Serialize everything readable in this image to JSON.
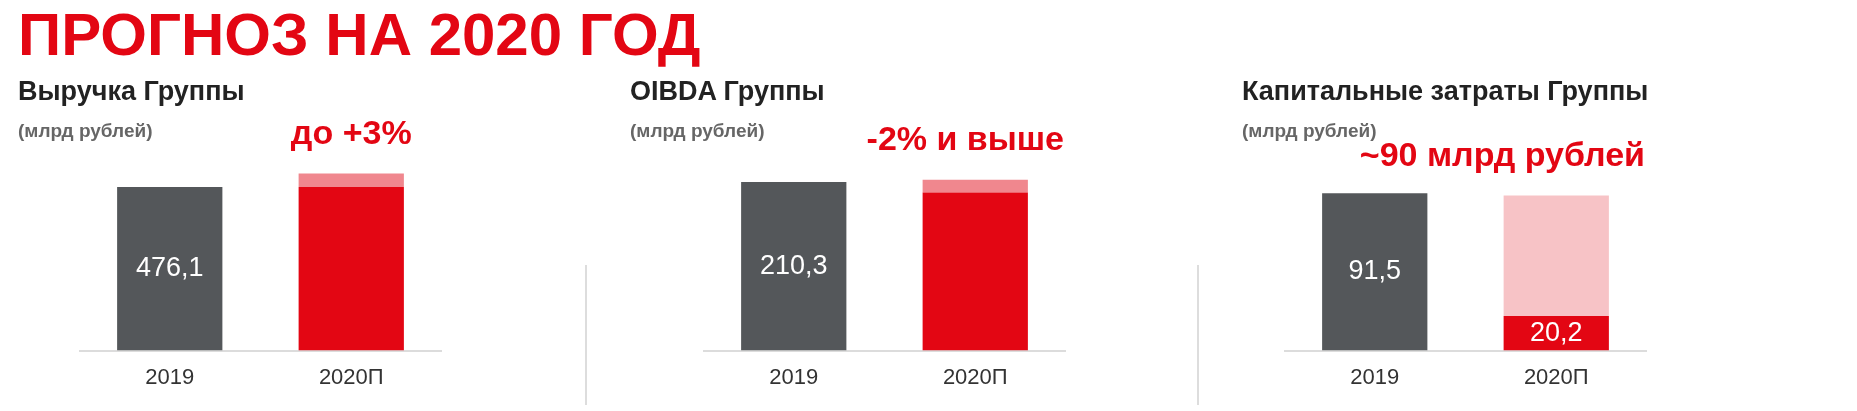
{
  "chart_data": [
    {
      "type": "other",
      "title": "ПРОГНОЗ НА 2020 ГОД"
    },
    {
      "type": "bar",
      "title": "Выручка Группы",
      "ylabel": "(млрд рублей)",
      "stacked": true,
      "tick_labels": "x",
      "categories": [
        "2019",
        "2020П"
      ],
      "series": [
        {
          "colors": [
            "#54575a",
            "#e30613"
          ],
          "values": [
            476.1,
            476
          ],
          "value_labels": [
            "476,1",
            null
          ]
        },
        {
          "color": "#f0878e",
          "values": [
            null,
            39
          ]
        }
      ],
      "annotations": [
        {
          "text": "до +3%",
          "x": "2020П",
          "y": 515
        }
      ]
    },
    {
      "type": "bar",
      "title": "OIBDA Группы",
      "ylabel": "(млрд рублей)",
      "stacked": true,
      "tick_labels": "x",
      "categories": [
        "2019",
        "2020П"
      ],
      "series": [
        {
          "colors": [
            "#54575a",
            "#e30613"
          ],
          "values": [
            210.3,
            197
          ],
          "value_labels": [
            "210,3",
            null
          ]
        },
        {
          "color": "#f0878e",
          "values": [
            null,
            16
          ]
        }
      ],
      "annotations": [
        {
          "text": "-2% и выше",
          "x": "2020П",
          "y": 213
        }
      ]
    },
    {
      "type": "bar",
      "title": "Капитальные затраты Группы",
      "ylabel": "(млрд рублей)",
      "stacked": true,
      "tick_labels": "x",
      "categories": [
        "2019",
        "2020П"
      ],
      "series": [
        {
          "colors": [
            "#54575a",
            "#e30613"
          ],
          "values": [
            91.5,
            20.2
          ],
          "value_labels": [
            "91,5",
            "20,2"
          ]
        },
        {
          "color": "#f7c3c6",
          "values": [
            null,
            70
          ]
        }
      ],
      "annotations": [
        {
          "text": "~90 млрд рублей",
          "x": "2020П",
          "y": 90.2
        }
      ]
    }
  ]
}
